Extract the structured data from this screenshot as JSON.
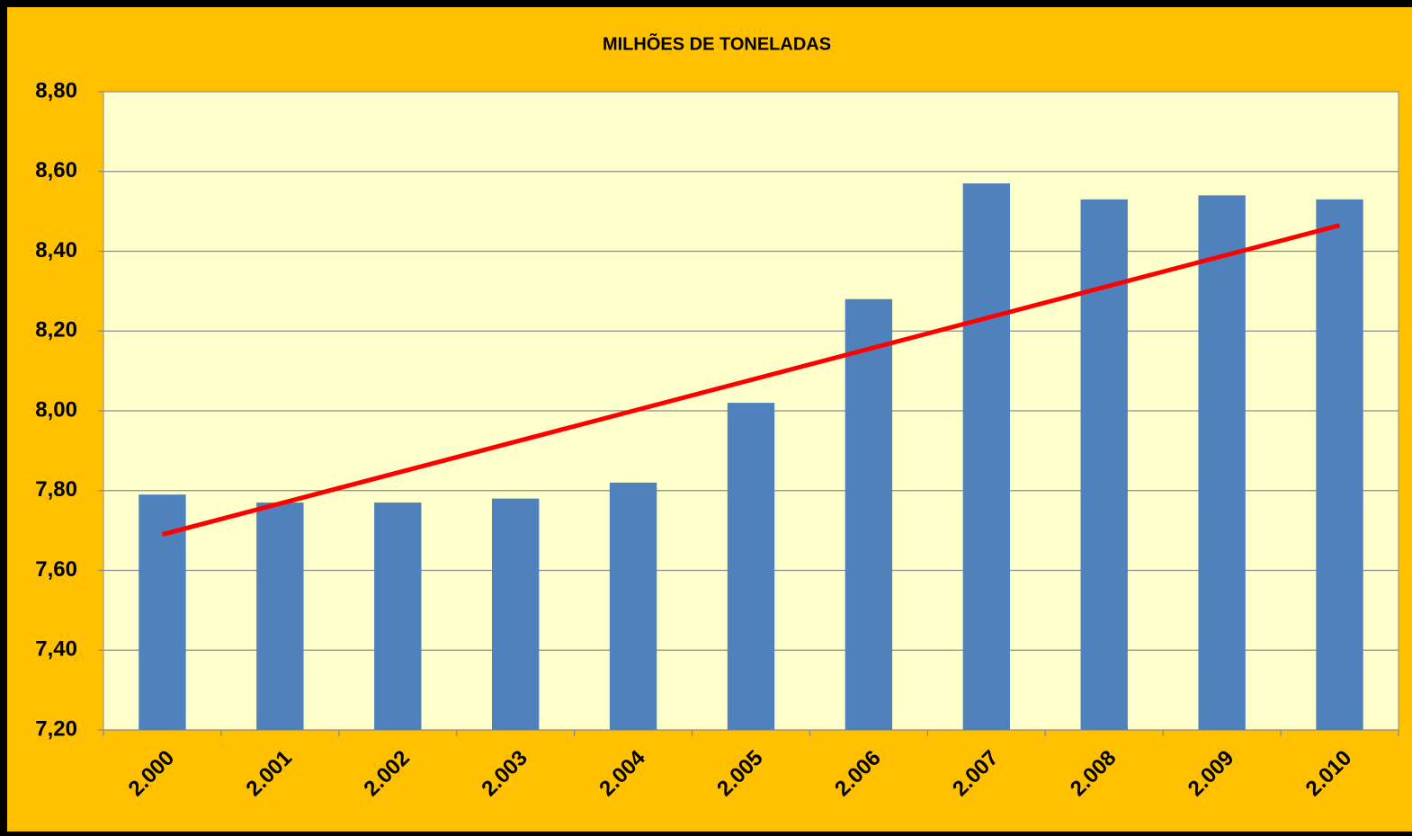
{
  "chart_data": {
    "type": "bar",
    "title": "MILHÕES DE TONELADAS",
    "categories": [
      "2.000",
      "2.001",
      "2.002",
      "2.003",
      "2.004",
      "2.005",
      "2.006",
      "2.007",
      "2.008",
      "2.009",
      "2.010"
    ],
    "values": [
      7.79,
      7.77,
      7.77,
      7.78,
      7.82,
      8.02,
      8.28,
      8.57,
      8.53,
      8.54,
      8.53
    ],
    "color": "#4f81bd",
    "trendline": {
      "color": "#ff0000",
      "values": [
        7.69,
        8.465
      ]
    },
    "ylim": [
      7.2,
      8.8
    ],
    "yticks": [
      {
        "value": 7.2,
        "label": "7,20"
      },
      {
        "value": 7.4,
        "label": "7,40"
      },
      {
        "value": 7.6,
        "label": "7,60"
      },
      {
        "value": 7.8,
        "label": "7,80"
      },
      {
        "value": 8.0,
        "label": "8,00"
      },
      {
        "value": 8.2,
        "label": "8,20"
      },
      {
        "value": 8.4,
        "label": "8,40"
      },
      {
        "value": 8.6,
        "label": "8,60"
      },
      {
        "value": 8.8,
        "label": "8,80"
      }
    ],
    "grid": true
  }
}
